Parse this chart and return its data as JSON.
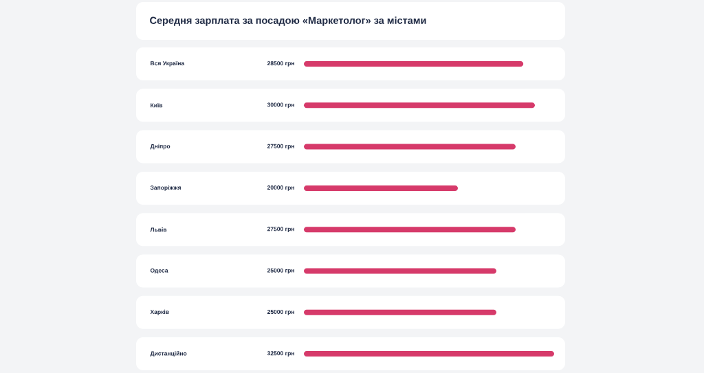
{
  "chart_data": {
    "type": "bar",
    "orientation": "horizontal",
    "title": "Середня зарплата за посадою «Маркетолог» за містами",
    "categories": [
      "Вся Україна",
      "Київ",
      "Дніпро",
      "Запоріжжя",
      "Львів",
      "Одеса",
      "Харків",
      "Дистанційно"
    ],
    "values": [
      28500,
      30000,
      27500,
      20000,
      27500,
      25000,
      25000,
      32500
    ],
    "value_labels": [
      "28500 грн",
      "30000 грн",
      "27500 грн",
      "20000 грн",
      "27500 грн",
      "25000 грн",
      "25000 грн",
      "32500 грн"
    ],
    "color": "#d63a6a"
  }
}
